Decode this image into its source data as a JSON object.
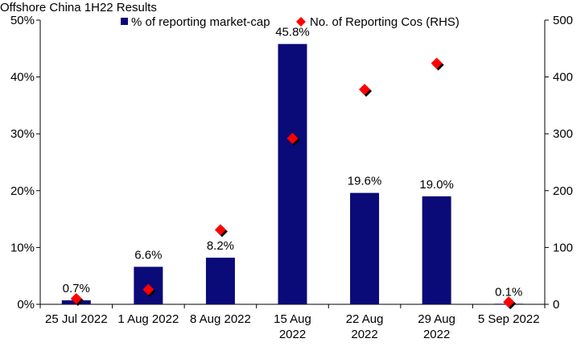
{
  "chart_data": {
    "type": "bar",
    "title": "Offshore China 1H22 Results",
    "categories": [
      [
        "25 Jul 2022"
      ],
      [
        "1 Aug 2022"
      ],
      [
        "8 Aug 2022"
      ],
      [
        "15 Aug",
        "2022"
      ],
      [
        "22 Aug",
        "2022"
      ],
      [
        "29 Aug",
        "2022"
      ],
      [
        "5 Sep 2022"
      ]
    ],
    "series": [
      {
        "name": "% of reporting market-cap",
        "kind": "bar",
        "axis": "left",
        "color": "#0a0a78",
        "values": [
          0.7,
          6.6,
          8.2,
          45.8,
          19.6,
          19.0,
          0.1
        ],
        "labels": [
          "0.7%",
          "6.6%",
          "8.2%",
          "45.8%",
          "19.6%",
          "19.0%",
          "0.1%"
        ]
      },
      {
        "name": "No. of Reporting Cos (RHS)",
        "kind": "scatter",
        "axis": "right",
        "color": "#ff0000",
        "values": [
          10,
          26,
          131,
          292,
          378,
          424,
          4
        ]
      }
    ],
    "yleft": {
      "min": 0,
      "max": 50,
      "ticks": [
        0,
        10,
        20,
        30,
        40,
        50
      ],
      "tick_labels": [
        "0%",
        "10%",
        "20%",
        "30%",
        "40%",
        "50%"
      ]
    },
    "yright": {
      "min": 0,
      "max": 500,
      "ticks": [
        0,
        100,
        200,
        300,
        400,
        500
      ],
      "tick_labels": [
        "0",
        "100",
        "200",
        "300",
        "400",
        "500"
      ]
    },
    "legend": "top-center",
    "grid": false
  }
}
